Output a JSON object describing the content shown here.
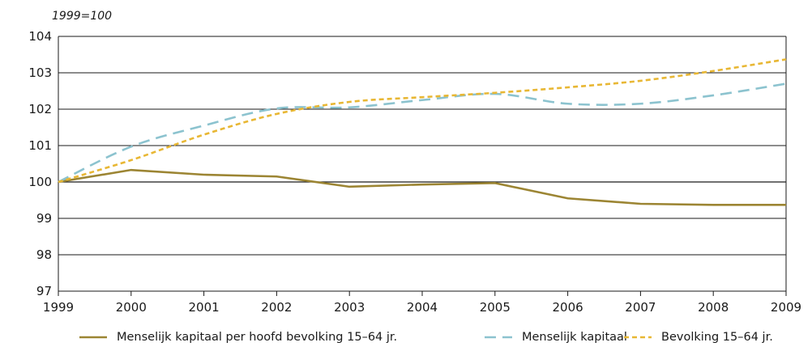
{
  "chart_data": {
    "type": "line",
    "unit_label": "1999=100",
    "x": [
      "1999",
      "2000",
      "2001",
      "2002",
      "2003",
      "2004",
      "2005",
      "2006",
      "2007",
      "2008",
      "2009"
    ],
    "ylim": [
      97,
      104
    ],
    "yticks": [
      97,
      98,
      99,
      100,
      101,
      102,
      103,
      104
    ],
    "grid": "horizontal",
    "reference_line": 100,
    "legend_position": "bottom",
    "series": [
      {
        "name": "Menselijk kapitaal per hoofd bevolking 15–64 jr.",
        "style": "solid",
        "color": "#9C8533",
        "values": [
          100.0,
          100.33,
          100.2,
          100.15,
          99.87,
          99.93,
          99.97,
          99.55,
          99.4,
          99.37,
          99.37
        ]
      },
      {
        "name": "Menselijk kapitaal",
        "style": "dashed",
        "color": "#8CC3CF",
        "values": [
          100.0,
          100.97,
          101.55,
          102.02,
          102.05,
          102.25,
          102.42,
          102.15,
          102.15,
          102.38,
          102.7
        ]
      },
      {
        "name": "Bevolking 15–64 jr.",
        "style": "dotted",
        "color": "#E8B734",
        "values": [
          100.0,
          100.6,
          101.3,
          101.87,
          102.2,
          102.33,
          102.45,
          102.6,
          102.78,
          103.05,
          103.37
        ]
      }
    ]
  }
}
